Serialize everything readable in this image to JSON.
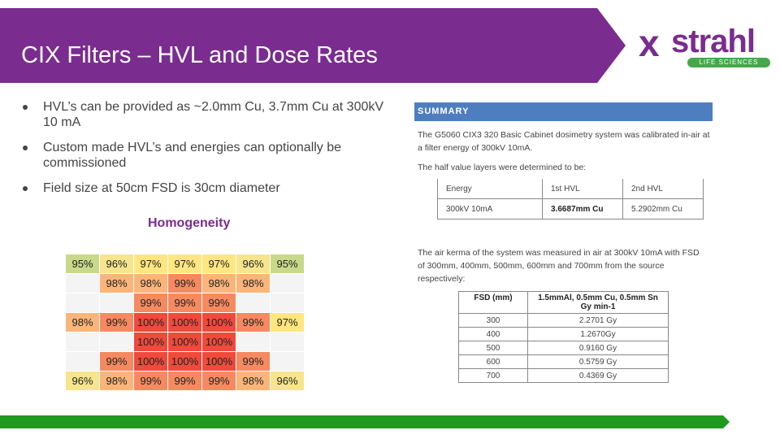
{
  "header": {
    "title": "CIX Filters – HVL and Dose Rates",
    "banner_color": "#7a2c8f"
  },
  "logo": {
    "brand": "strahl",
    "tagline": "LIFE SCIENCES",
    "brand_color": "#7a2c8f",
    "tag_color": "#45a84a"
  },
  "bullets": [
    "HVL’s can be provided as ~2.0mm Cu, 3.7mm Cu at 300kV 10 mA",
    "Custom made HVL’s and energies can optionally be commissioned",
    "Field size at 50cm FSD is 30cm diameter"
  ],
  "homogeneity": {
    "label": "Homogeneity",
    "rows": [
      [
        "95%",
        "96%",
        "97%",
        "97%",
        "97%",
        "96%",
        "95%"
      ],
      [
        "",
        "98%",
        "98%",
        "99%",
        "98%",
        "98%",
        ""
      ],
      [
        "",
        "",
        "99%",
        "99%",
        "99%",
        "",
        ""
      ],
      [
        "98%",
        "99%",
        "100%",
        "100%",
        "100%",
        "99%",
        "97%"
      ],
      [
        "",
        "",
        "100%",
        "100%",
        "100%",
        "",
        ""
      ],
      [
        "",
        "99%",
        "100%",
        "100%",
        "100%",
        "99%",
        ""
      ],
      [
        "96%",
        "98%",
        "99%",
        "99%",
        "99%",
        "98%",
        "96%"
      ]
    ],
    "colors": {
      "95": "#c9d98a",
      "96": "#f6e58c",
      "97": "#ffe680",
      "98": "#fbb57a",
      "99": "#f58a60",
      "100": "#ef4a3c",
      "empty": "#f4f4f4"
    }
  },
  "summary": {
    "heading": "SUMMARY",
    "para1_line1": "The G5060 CIX3 320 Basic Cabinet dosimetry system was calibrated in-air at",
    "para1_line2": "a filter energy of 300kV 10mA.",
    "para2": "The half value layers were determined to be:",
    "hvl_table": [
      [
        "Energy",
        "1st HVL",
        "2nd HVL"
      ],
      [
        "300kV 10mA",
        "3.6687mm Cu",
        "5.2902mm Cu"
      ]
    ],
    "para3_line1": "The air kerma of the system was measured in air at 300kV 10mA with FSD",
    "para3_line2": "of 300mm, 400mm, 500mm, 600mm and 700mm from the source",
    "para3_line3": "respectively:",
    "kerma_header": [
      "FSD (mm)",
      "1.5mmAl, 0.5mm Cu, 0.5mm Sn Gy min-1"
    ],
    "kerma_rows": [
      [
        "300",
        "2.2701 Gy"
      ],
      [
        "400",
        "1.2670Gy"
      ],
      [
        "500",
        "0.9160 Gy"
      ],
      [
        "600",
        "0.5759 Gy"
      ],
      [
        "700",
        "0.4369 Gy"
      ]
    ],
    "bar_color": "#4f7ec0"
  },
  "footer": {
    "bar_color": "#1f9a1f"
  }
}
